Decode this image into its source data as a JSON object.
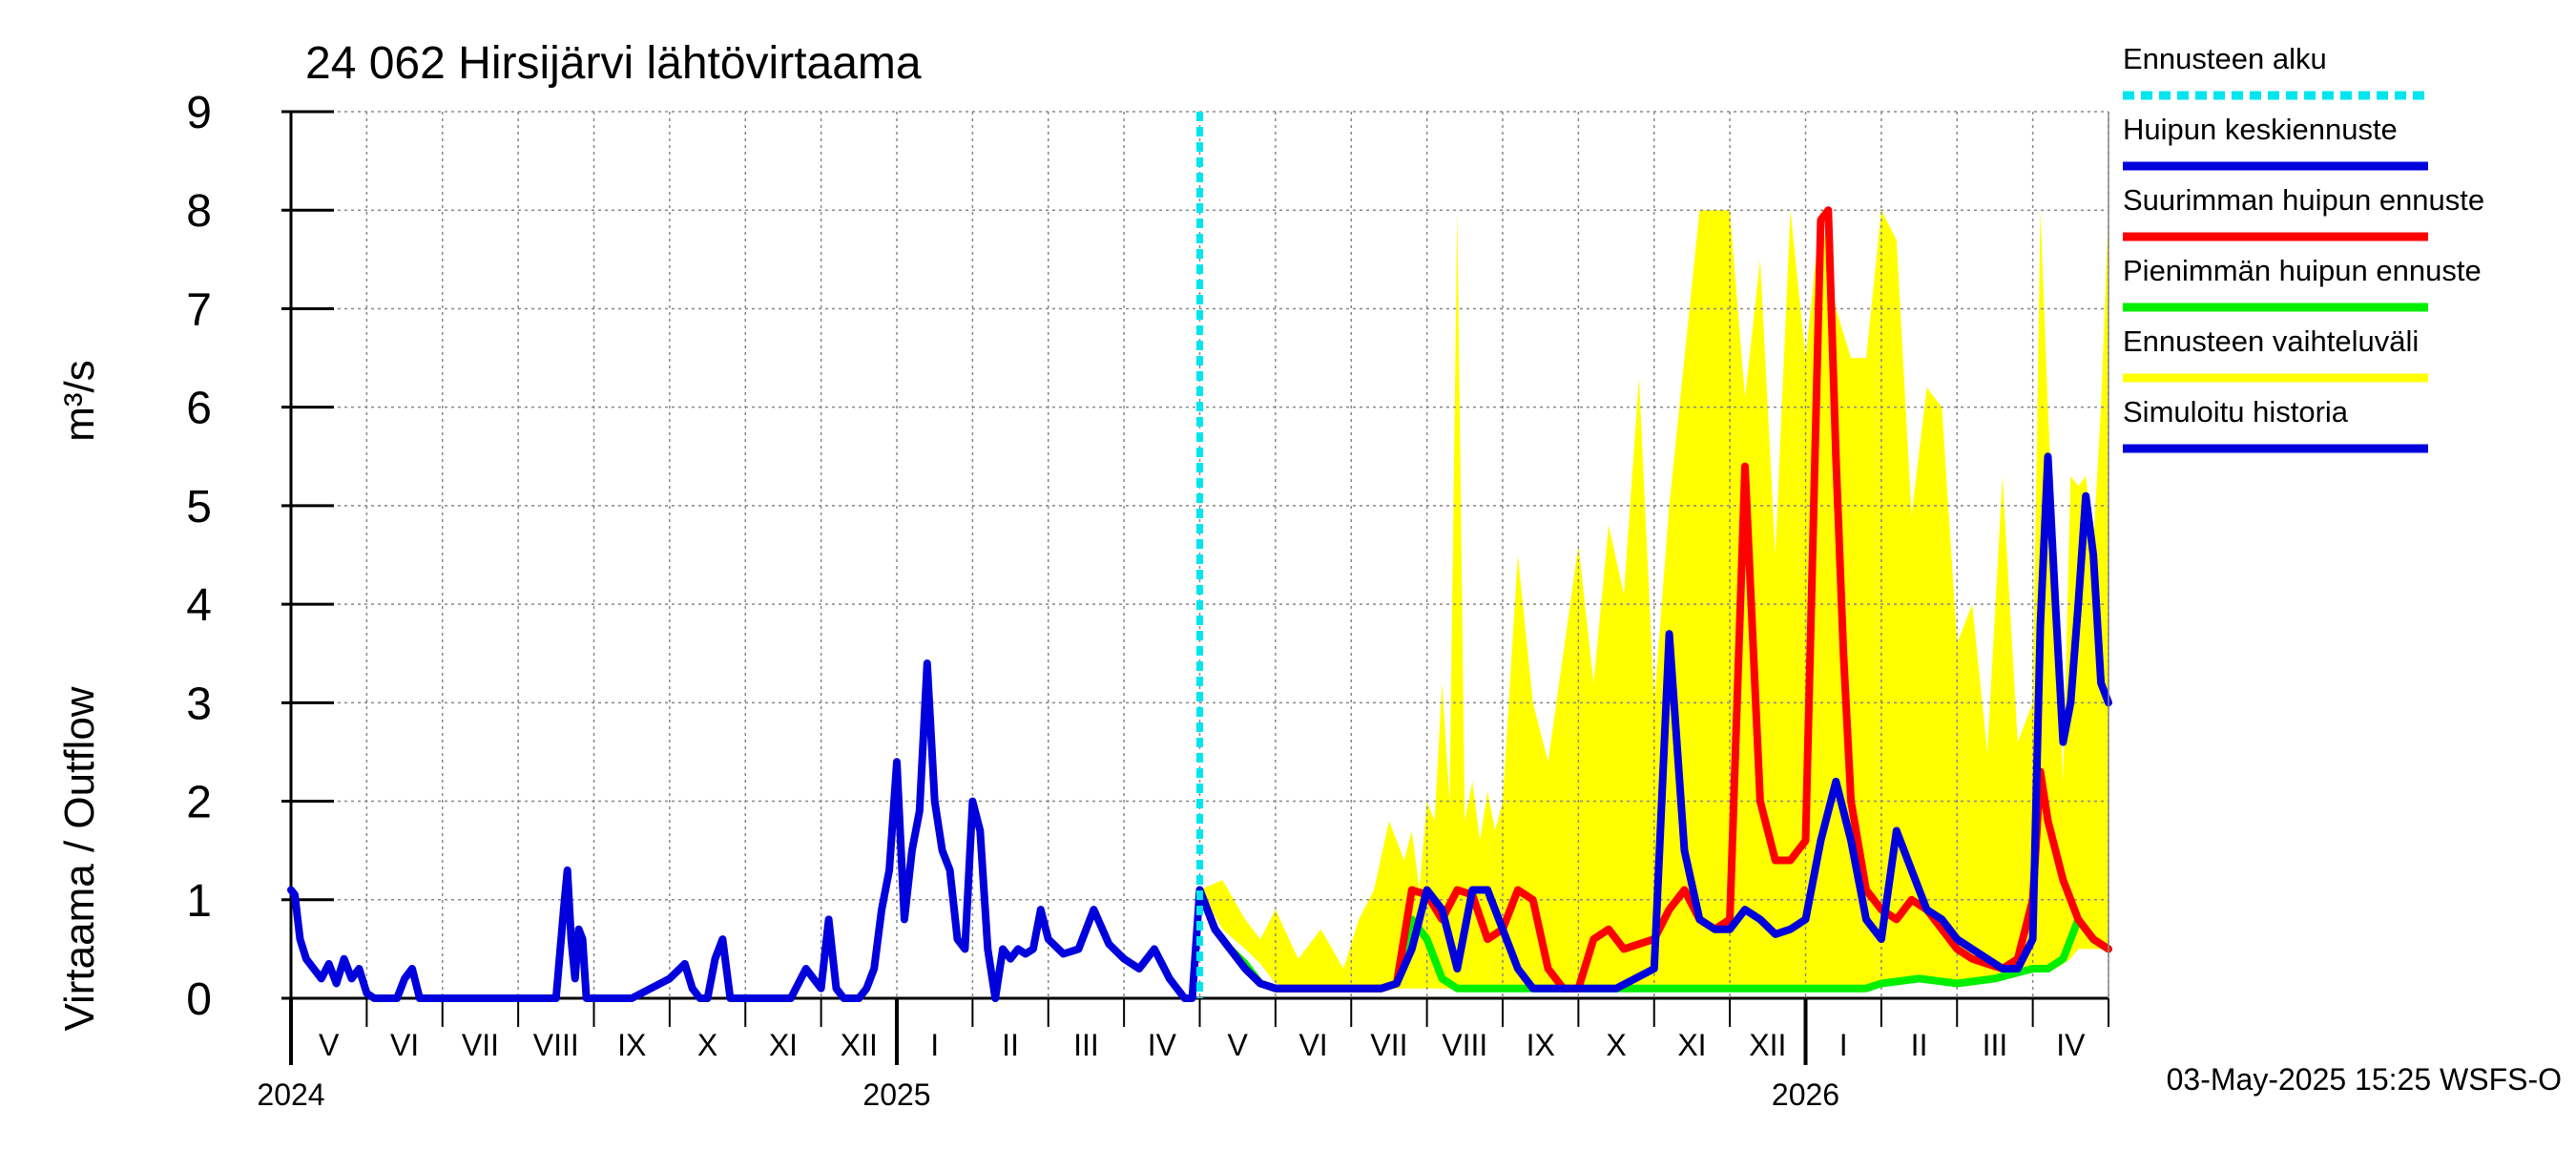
{
  "chart_data": {
    "type": "line",
    "title": "24 062 Hirsijärvi lähtövirtaama",
    "ylabel_fi": "Virtaama / Outflow",
    "ylabel_unit": "m³/s",
    "ylim": [
      0,
      9
    ],
    "yticks": [
      "0",
      "1",
      "2",
      "3",
      "4",
      "5",
      "6",
      "7",
      "8",
      "9"
    ],
    "x_range_months": [
      0,
      24
    ],
    "month_labels": [
      "V",
      "VI",
      "VII",
      "VIII",
      "IX",
      "X",
      "XI",
      "XII",
      "I",
      "II",
      "III",
      "IV",
      "V",
      "VI",
      "VII",
      "VIII",
      "IX",
      "X",
      "XI",
      "XII",
      "I",
      "II",
      "III",
      "IV"
    ],
    "year_labels": [
      {
        "label": "2024",
        "month_index": 0
      },
      {
        "label": "2025",
        "month_index": 8
      },
      {
        "label": "2026",
        "month_index": 20
      }
    ],
    "forecast_start_month": 12,
    "footer": "03-May-2025 15:25 WSFS-O",
    "legend": [
      {
        "label": "Ennusteen alku",
        "color": "#00e5ee",
        "style": "dashed"
      },
      {
        "label": "Huipun keskiennuste",
        "color": "#0000dd",
        "style": "solid"
      },
      {
        "label": "Suurimman huipun ennuste",
        "color": "#ff0000",
        "style": "solid"
      },
      {
        "label": "Pienimmän huipun ennuste",
        "color": "#00ee00",
        "style": "solid"
      },
      {
        "label": "Ennusteen vaihteluväli",
        "color": "#ffff00",
        "style": "solid"
      },
      {
        "label": "Simuloitu historia",
        "color": "#0000dd",
        "style": "solid"
      }
    ],
    "colors": {
      "history": "#0000dd",
      "mean": "#0000dd",
      "max": "#ff0000",
      "min": "#00ee00",
      "band": "#ffff00",
      "forecast_start": "#00e5ee",
      "grid": "#888888"
    },
    "series": [
      {
        "name": "Simuloitu historia",
        "x": [
          0,
          0.05,
          0.12,
          0.2,
          0.3,
          0.4,
          0.5,
          0.6,
          0.7,
          0.8,
          0.9,
          1.0,
          1.1,
          1.2,
          1.3,
          1.4,
          1.5,
          1.6,
          1.7,
          1.8,
          1.9,
          2.0,
          2.5,
          3.0,
          3.5,
          3.6,
          3.65,
          3.7,
          3.75,
          3.8,
          3.85,
          3.9,
          4.0,
          4.5,
          5.0,
          5.2,
          5.3,
          5.4,
          5.5,
          5.6,
          5.7,
          5.8,
          6.0,
          6.6,
          6.8,
          6.9,
          7.0,
          7.1,
          7.2,
          7.3,
          7.4,
          7.5,
          7.6,
          7.7,
          7.8,
          7.9,
          8.0,
          8.1,
          8.2,
          8.3,
          8.4,
          8.5,
          8.6,
          8.7,
          8.8,
          8.9,
          9.0,
          9.1,
          9.2,
          9.3,
          9.4,
          9.5,
          9.6,
          9.7,
          9.8,
          9.9,
          10.0,
          10.2,
          10.4,
          10.6,
          10.8,
          11.0,
          11.2,
          11.4,
          11.6,
          11.8,
          11.9,
          12.0
        ],
        "values": [
          1.1,
          1.05,
          0.6,
          0.4,
          0.3,
          0.2,
          0.35,
          0.15,
          0.4,
          0.2,
          0.3,
          0.05,
          0.0,
          0.0,
          0.0,
          0.0,
          0.2,
          0.3,
          0.0,
          0.0,
          0.0,
          0.0,
          0.0,
          0.0,
          0.0,
          0.9,
          1.3,
          0.6,
          0.2,
          0.7,
          0.6,
          0.0,
          0.0,
          0.0,
          0.2,
          0.35,
          0.1,
          0.0,
          0.0,
          0.4,
          0.6,
          0.0,
          0.0,
          0.0,
          0.3,
          0.2,
          0.1,
          0.8,
          0.1,
          0.0,
          0.0,
          0.0,
          0.1,
          0.3,
          0.9,
          1.3,
          2.4,
          0.8,
          1.5,
          1.9,
          3.4,
          2.0,
          1.5,
          1.3,
          0.6,
          0.5,
          2.0,
          1.7,
          0.5,
          0.0,
          0.5,
          0.4,
          0.5,
          0.45,
          0.5,
          0.9,
          0.6,
          0.45,
          0.5,
          0.9,
          0.55,
          0.4,
          0.3,
          0.5,
          0.2,
          0.0,
          0.0,
          1.1
        ]
      },
      {
        "name": "Huipun keskiennuste",
        "x": [
          12.0,
          12.2,
          12.4,
          12.6,
          12.8,
          13.0,
          13.5,
          14.0,
          14.4,
          14.6,
          14.8,
          15.0,
          15.2,
          15.4,
          15.6,
          15.8,
          16.0,
          16.2,
          16.4,
          16.6,
          16.8,
          17.0,
          17.5,
          18.0,
          18.2,
          18.4,
          18.6,
          18.8,
          19.0,
          19.2,
          19.4,
          19.6,
          19.8,
          20.0,
          20.2,
          20.4,
          20.6,
          20.8,
          21.0,
          21.2,
          21.4,
          21.6,
          21.8,
          22.0,
          22.2,
          22.4,
          22.6,
          22.8,
          23.0,
          23.1,
          23.2,
          23.3,
          23.4,
          23.5,
          23.6,
          23.7,
          23.8,
          23.9,
          24.0
        ],
        "values": [
          1.1,
          0.7,
          0.5,
          0.3,
          0.15,
          0.1,
          0.1,
          0.1,
          0.1,
          0.15,
          0.5,
          1.1,
          0.9,
          0.3,
          1.1,
          1.1,
          0.7,
          0.3,
          0.1,
          0.1,
          0.1,
          0.1,
          0.1,
          0.3,
          3.7,
          1.5,
          0.8,
          0.7,
          0.7,
          0.9,
          0.8,
          0.65,
          0.7,
          0.8,
          1.6,
          2.2,
          1.6,
          0.8,
          0.6,
          1.7,
          1.3,
          0.9,
          0.8,
          0.6,
          0.5,
          0.4,
          0.3,
          0.3,
          0.6,
          3.8,
          5.5,
          4.0,
          2.6,
          3.0,
          4.0,
          5.1,
          4.5,
          3.2,
          3.0
        ]
      },
      {
        "name": "Suurimman huipun ennuste",
        "x": [
          12.0,
          12.2,
          12.4,
          12.6,
          12.8,
          13.0,
          13.5,
          14.0,
          14.4,
          14.6,
          14.8,
          15.0,
          15.2,
          15.4,
          15.6,
          15.8,
          16.0,
          16.2,
          16.4,
          16.6,
          16.8,
          17.0,
          17.2,
          17.4,
          17.6,
          17.8,
          18.0,
          18.2,
          18.4,
          18.6,
          18.8,
          19.0,
          19.2,
          19.4,
          19.6,
          19.8,
          20.0,
          20.2,
          20.3,
          20.4,
          20.5,
          20.6,
          20.8,
          21.0,
          21.2,
          21.4,
          21.6,
          21.8,
          22.0,
          22.2,
          22.4,
          22.6,
          22.8,
          23.0,
          23.1,
          23.2,
          23.4,
          23.6,
          23.8,
          24.0
        ],
        "values": [
          1.1,
          0.7,
          0.5,
          0.3,
          0.15,
          0.1,
          0.1,
          0.1,
          0.1,
          0.15,
          1.1,
          1.05,
          0.8,
          1.1,
          1.05,
          0.6,
          0.7,
          1.1,
          1.0,
          0.3,
          0.1,
          0.1,
          0.6,
          0.7,
          0.5,
          0.55,
          0.6,
          0.9,
          1.1,
          0.8,
          0.7,
          0.8,
          5.4,
          2.0,
          1.4,
          1.4,
          1.6,
          7.9,
          8.0,
          5.5,
          3.5,
          2.0,
          1.1,
          0.9,
          0.8,
          1.0,
          0.9,
          0.7,
          0.5,
          0.4,
          0.35,
          0.3,
          0.4,
          1.0,
          2.3,
          1.8,
          1.2,
          0.8,
          0.6,
          0.5
        ]
      },
      {
        "name": "Pienimmän huipun ennuste",
        "x": [
          12.0,
          12.2,
          12.4,
          12.6,
          12.8,
          13.0,
          13.5,
          14.0,
          14.4,
          14.6,
          14.8,
          15.0,
          15.2,
          15.3,
          15.4,
          15.6,
          15.8,
          16.0,
          16.5,
          17.0,
          17.5,
          18.0,
          18.5,
          19.0,
          19.5,
          20.0,
          20.4,
          20.8,
          21.0,
          21.5,
          22.0,
          22.5,
          23.0,
          23.2,
          23.4,
          23.6,
          23.8,
          24.0
        ],
        "values": [
          1.1,
          0.7,
          0.5,
          0.35,
          0.15,
          0.1,
          0.1,
          0.1,
          0.1,
          0.15,
          0.8,
          0.6,
          0.2,
          0.15,
          0.1,
          0.1,
          0.1,
          0.1,
          0.1,
          0.1,
          0.1,
          0.1,
          0.1,
          0.1,
          0.1,
          0.1,
          0.1,
          0.1,
          0.15,
          0.2,
          0.15,
          0.2,
          0.3,
          0.3,
          0.4,
          0.8,
          0.6,
          0.5
        ]
      }
    ],
    "band": {
      "name": "Ennusteen vaihteluväli",
      "x": [
        12.0,
        12.3,
        12.6,
        12.8,
        13.0,
        13.3,
        13.6,
        13.9,
        14.1,
        14.3,
        14.5,
        14.7,
        14.8,
        14.9,
        15.0,
        15.1,
        15.2,
        15.3,
        15.4,
        15.5,
        15.6,
        15.7,
        15.8,
        15.9,
        16.0,
        16.2,
        16.4,
        16.6,
        16.8,
        17.0,
        17.2,
        17.4,
        17.6,
        17.8,
        18.0,
        18.2,
        18.4,
        18.6,
        18.8,
        19.0,
        19.2,
        19.4,
        19.6,
        19.8,
        20.0,
        20.2,
        20.4,
        20.6,
        20.8,
        21.0,
        21.2,
        21.4,
        21.6,
        21.8,
        22.0,
        22.2,
        22.4,
        22.6,
        22.8,
        23.0,
        23.1,
        23.2,
        23.3,
        23.4,
        23.5,
        23.6,
        23.7,
        23.8,
        23.9,
        24.0
      ],
      "upper": [
        1.1,
        1.2,
        0.8,
        0.6,
        0.9,
        0.4,
        0.7,
        0.3,
        0.8,
        1.1,
        1.8,
        1.4,
        1.7,
        1.1,
        2.0,
        1.8,
        3.2,
        2.0,
        8.0,
        1.8,
        2.2,
        1.6,
        2.1,
        1.7,
        2.0,
        4.5,
        3.0,
        2.4,
        3.5,
        4.6,
        3.2,
        4.8,
        4.1,
        6.3,
        3.0,
        5.0,
        6.5,
        8.0,
        8.0,
        8.0,
        6.1,
        7.5,
        4.5,
        8.0,
        6.5,
        8.0,
        7.0,
        6.5,
        6.5,
        8.0,
        7.7,
        4.9,
        6.2,
        6.0,
        3.6,
        4.0,
        2.5,
        5.3,
        2.6,
        3.0,
        8.0,
        6.0,
        4.3,
        2.2,
        5.3,
        5.2,
        5.3,
        4.6,
        6.0,
        8.0
      ],
      "lower": [
        1.1,
        0.7,
        0.5,
        0.35,
        0.15,
        0.1,
        0.1,
        0.1,
        0.1,
        0.1,
        0.1,
        0.1,
        0.1,
        0.1,
        0.1,
        0.1,
        0.1,
        0.1,
        0.1,
        0.1,
        0.1,
        0.1,
        0.1,
        0.1,
        0.1,
        0.1,
        0.1,
        0.1,
        0.1,
        0.1,
        0.1,
        0.1,
        0.1,
        0.1,
        0.1,
        0.1,
        0.1,
        0.1,
        0.1,
        0.1,
        0.1,
        0.1,
        0.1,
        0.1,
        0.1,
        0.1,
        0.1,
        0.1,
        0.1,
        0.15,
        0.2,
        0.2,
        0.2,
        0.15,
        0.15,
        0.15,
        0.2,
        0.25,
        0.3,
        0.3,
        0.3,
        0.3,
        0.3,
        0.35,
        0.4,
        0.5,
        0.5,
        0.5,
        0.5,
        0.5
      ]
    }
  }
}
